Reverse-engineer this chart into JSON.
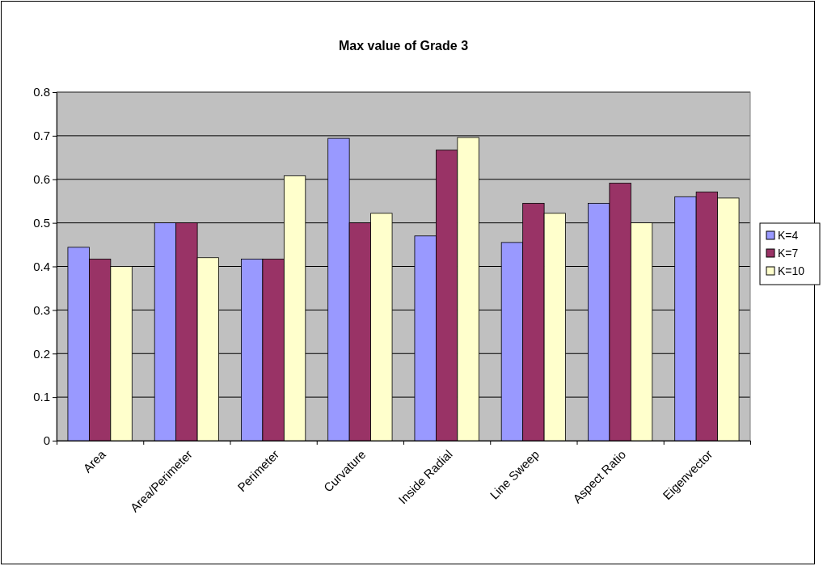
{
  "chart_data": {
    "type": "bar",
    "title": "Max value of Grade 3",
    "categories": [
      "Area",
      "Area/Perimeter",
      "Perimeter",
      "Curvature",
      "Inside Radial",
      "Line Sweep",
      "Aspect Ratio",
      "Eigenvector"
    ],
    "series": [
      {
        "name": "K=4",
        "color": "#9999ff",
        "values": [
          0.444,
          0.5,
          0.417,
          0.694,
          0.47,
          0.455,
          0.545,
          0.56
        ]
      },
      {
        "name": "K=7",
        "color": "#993366",
        "values": [
          0.417,
          0.5,
          0.417,
          0.5,
          0.667,
          0.545,
          0.591,
          0.571
        ]
      },
      {
        "name": "K=10",
        "color": "#ffffcc",
        "values": [
          0.4,
          0.42,
          0.608,
          0.522,
          0.696,
          0.522,
          0.5,
          0.557
        ]
      }
    ],
    "ylim": [
      0,
      0.8
    ],
    "yticks": [
      0,
      0.1,
      0.2,
      0.3,
      0.4,
      0.5,
      0.6,
      0.7,
      0.8
    ],
    "grid": "y",
    "legend": "right"
  }
}
